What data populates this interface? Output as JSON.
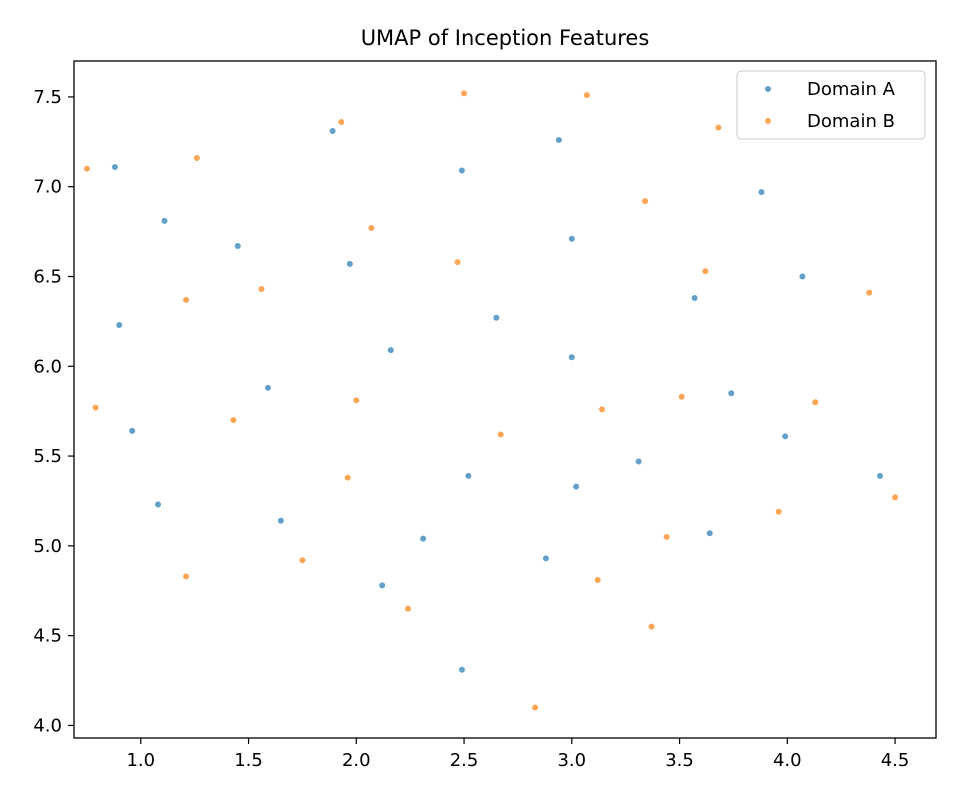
{
  "chart_data": {
    "type": "scatter",
    "title": "UMAP of Inception Features",
    "xlabel": "",
    "ylabel": "",
    "xlim": [
      0.69,
      4.69
    ],
    "ylim": [
      3.93,
      7.7
    ],
    "xticks": [
      1.0,
      1.5,
      2.0,
      2.5,
      3.0,
      3.5,
      4.0,
      4.5
    ],
    "yticks": [
      4.0,
      4.5,
      5.0,
      5.5,
      6.0,
      6.5,
      7.0,
      7.5
    ],
    "xtick_labels": [
      "1.0",
      "1.5",
      "2.0",
      "2.5",
      "3.0",
      "3.5",
      "4.0",
      "4.5"
    ],
    "ytick_labels": [
      "4.0",
      "4.5",
      "5.0",
      "5.5",
      "6.0",
      "6.5",
      "7.0",
      "7.5"
    ],
    "grid": false,
    "legend_position": "top-right",
    "series": [
      {
        "name": "Domain A",
        "color": "#1f77b4",
        "points": [
          [
            0.88,
            7.11
          ],
          [
            1.11,
            6.81
          ],
          [
            1.89,
            7.31
          ],
          [
            2.49,
            7.09
          ],
          [
            2.94,
            7.26
          ],
          [
            3.88,
            6.97
          ],
          [
            1.45,
            6.67
          ],
          [
            1.97,
            6.57
          ],
          [
            3.0,
            6.71
          ],
          [
            0.9,
            6.23
          ],
          [
            2.65,
            6.27
          ],
          [
            3.57,
            6.38
          ],
          [
            4.07,
            6.5
          ],
          [
            2.16,
            6.09
          ],
          [
            3.0,
            6.05
          ],
          [
            1.59,
            5.88
          ],
          [
            3.74,
            5.85
          ],
          [
            0.96,
            5.64
          ],
          [
            3.99,
            5.61
          ],
          [
            3.31,
            5.47
          ],
          [
            2.52,
            5.39
          ],
          [
            4.43,
            5.39
          ],
          [
            1.08,
            5.23
          ],
          [
            3.02,
            5.33
          ],
          [
            1.65,
            5.14
          ],
          [
            2.31,
            5.04
          ],
          [
            3.64,
            5.07
          ],
          [
            2.88,
            4.93
          ],
          [
            2.12,
            4.78
          ],
          [
            2.49,
            4.31
          ]
        ]
      },
      {
        "name": "Domain B",
        "color": "#ff7f0e",
        "points": [
          [
            0.75,
            7.1
          ],
          [
            1.26,
            7.16
          ],
          [
            1.93,
            7.36
          ],
          [
            2.5,
            7.52
          ],
          [
            3.07,
            7.51
          ],
          [
            3.68,
            7.33
          ],
          [
            3.34,
            6.92
          ],
          [
            2.07,
            6.77
          ],
          [
            2.47,
            6.58
          ],
          [
            3.62,
            6.53
          ],
          [
            1.21,
            6.37
          ],
          [
            1.56,
            6.43
          ],
          [
            4.38,
            6.41
          ],
          [
            0.79,
            5.77
          ],
          [
            2.0,
            5.81
          ],
          [
            3.14,
            5.76
          ],
          [
            3.51,
            5.83
          ],
          [
            4.13,
            5.8
          ],
          [
            1.43,
            5.7
          ],
          [
            2.67,
            5.62
          ],
          [
            1.96,
            5.38
          ],
          [
            4.5,
            5.27
          ],
          [
            3.96,
            5.19
          ],
          [
            3.44,
            5.05
          ],
          [
            1.75,
            4.92
          ],
          [
            1.21,
            4.83
          ],
          [
            3.12,
            4.81
          ],
          [
            2.24,
            4.65
          ],
          [
            3.37,
            4.55
          ],
          [
            2.83,
            4.1
          ]
        ]
      }
    ]
  }
}
